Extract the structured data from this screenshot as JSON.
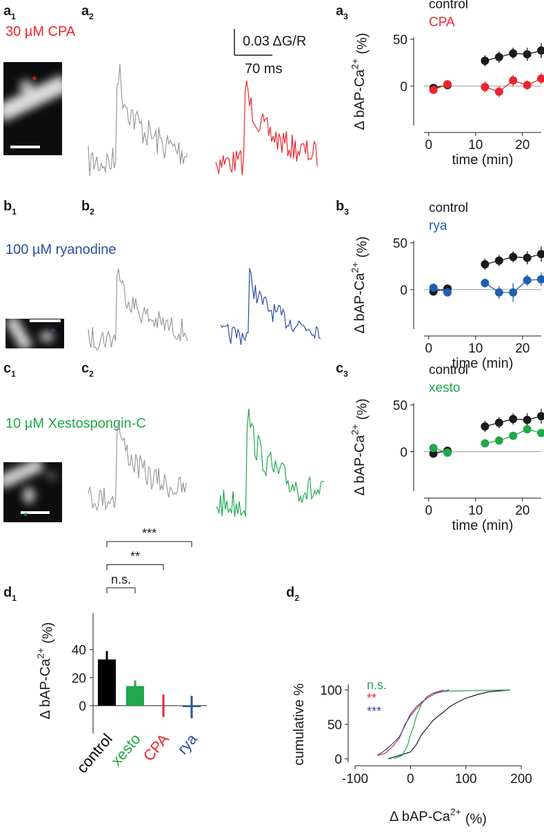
{
  "panel_labels": [
    {
      "letter": "a",
      "index": "1"
    },
    {
      "letter": "a",
      "index": "2"
    },
    {
      "letter": "a",
      "index": "3"
    },
    {
      "letter": "b",
      "index": "1"
    },
    {
      "letter": "b",
      "index": "2"
    },
    {
      "letter": "b",
      "index": "3"
    },
    {
      "letter": "c",
      "index": "1"
    },
    {
      "letter": "c",
      "index": "2"
    },
    {
      "letter": "c",
      "index": "3"
    },
    {
      "letter": "d",
      "index": "1"
    },
    {
      "letter": "d",
      "index": "2"
    }
  ],
  "conditions": [
    {
      "text": "30 µM CPA",
      "color": "#e8262b"
    },
    {
      "text": "100 µM ryanodine",
      "color": "#2b4ea0"
    },
    {
      "text": "10 µM Xestospongin-C",
      "color": "#20a84a"
    }
  ],
  "roi_marker": "*",
  "scale_bar": {
    "amplitude": "0.03 ΔG/R",
    "duration": "70 ms"
  },
  "chart_data": [
    {
      "type": "scatter",
      "x_label": "time (min)",
      "y_label": {
        "text": "Δ bAP-Ca",
        "sup": "2+",
        "unit": "(%)"
      },
      "xlim": [
        -1,
        24
      ],
      "xticks": [
        0,
        10,
        20
      ],
      "ylim": [
        -40,
        50
      ],
      "yticks": [
        0,
        50
      ],
      "zero_line": true,
      "x": [
        1,
        4,
        null,
        12,
        15,
        18,
        21,
        24
      ],
      "series": [
        {
          "name": "control",
          "color": "#1a1a1a",
          "values": [
            -2,
            1,
            null,
            27,
            31,
            35,
            34,
            38
          ],
          "errors": [
            2,
            2,
            null,
            6,
            6,
            6,
            7,
            8
          ]
        },
        {
          "name": "CPA",
          "color": "#e8262b",
          "values": [
            -4,
            2,
            null,
            -1,
            -6,
            6,
            1,
            8
          ],
          "errors": [
            2,
            2,
            null,
            6,
            6,
            6,
            5,
            6
          ]
        }
      ]
    },
    {
      "type": "scatter",
      "x_label": "time (min)",
      "y_label": {
        "text": "Δ bAP-Ca",
        "sup": "2+",
        "unit": "(%)"
      },
      "xlim": [
        -1,
        24
      ],
      "xticks": [
        0,
        10,
        20
      ],
      "ylim": [
        -40,
        50
      ],
      "yticks": [
        0,
        50
      ],
      "zero_line": true,
      "x": [
        1,
        4,
        null,
        12,
        15,
        18,
        21,
        24
      ],
      "series": [
        {
          "name": "control",
          "color": "#1a1a1a",
          "values": [
            -2,
            1,
            null,
            27,
            31,
            35,
            34,
            38
          ],
          "errors": [
            2,
            2,
            null,
            6,
            6,
            6,
            7,
            8
          ]
        },
        {
          "name": "rya",
          "color": "#1f5fb0",
          "values": [
            2,
            -3,
            null,
            7,
            -3,
            -3,
            10,
            11
          ],
          "errors": [
            2,
            2,
            null,
            5,
            7,
            10,
            6,
            7
          ]
        }
      ]
    },
    {
      "type": "scatter",
      "x_label": "time (min)",
      "y_label": {
        "text": "Δ bAP-Ca",
        "sup": "2+",
        "unit": "(%)"
      },
      "xlim": [
        -1,
        24
      ],
      "xticks": [
        0,
        10,
        20
      ],
      "ylim": [
        -40,
        50
      ],
      "yticks": [
        0,
        50
      ],
      "zero_line": true,
      "x": [
        1,
        4,
        null,
        12,
        15,
        18,
        21,
        24
      ],
      "series": [
        {
          "name": "control",
          "color": "#1a1a1a",
          "values": [
            -2,
            1,
            null,
            27,
            31,
            35,
            34,
            38
          ],
          "errors": [
            2,
            2,
            null,
            6,
            6,
            6,
            7,
            8
          ]
        },
        {
          "name": "xesto",
          "color": "#20a84a",
          "values": [
            4,
            -1,
            null,
            9,
            12,
            17,
            24,
            20
          ],
          "errors": [
            3,
            2,
            null,
            4,
            4,
            4,
            3,
            4
          ]
        }
      ]
    },
    {
      "type": "bar",
      "y_label": {
        "text": "Δ bAP-Ca",
        "sup": "2+",
        "unit": "(%)"
      },
      "categories": [
        "control",
        "xesto",
        "CPA",
        "rya"
      ],
      "category_colors": [
        "#000000",
        "#20a84a",
        "#e8262b",
        "#2b4ea0"
      ],
      "values": [
        33,
        14,
        0,
        -1
      ],
      "errors": [
        6,
        4,
        8,
        8
      ],
      "ylim": [
        -20,
        60
      ],
      "yticks": [
        0,
        20,
        40
      ],
      "annotations": [
        "n.s.",
        "**",
        "***"
      ]
    },
    {
      "type": "line",
      "x_label": {
        "text": "Δ bAP-Ca",
        "sup": "2+",
        "unit": "(%)"
      },
      "y_label": "cumulative %",
      "xlim": [
        -100,
        200
      ],
      "xticks": [
        -100,
        0,
        100,
        200
      ],
      "ylim": [
        0,
        100
      ],
      "yticks": [
        0,
        50,
        100
      ],
      "series": [
        {
          "color": "#1a1a1a",
          "x": [
            -40,
            -20,
            0,
            10,
            20,
            30,
            40,
            50,
            60,
            70,
            80,
            100,
            120,
            140,
            180
          ],
          "values": [
            0,
            5,
            10,
            20,
            35,
            45,
            55,
            62,
            68,
            75,
            80,
            88,
            93,
            97,
            100
          ]
        },
        {
          "name": "n.s.",
          "color": "#20a84a",
          "x": [
            -30,
            -15,
            -5,
            0,
            5,
            10,
            20,
            30,
            40,
            60,
            180
          ],
          "values": [
            0,
            5,
            20,
            35,
            45,
            60,
            80,
            90,
            95,
            98,
            100
          ]
        },
        {
          "name": "**",
          "color": "#e8262b",
          "x": [
            -60,
            -45,
            -30,
            -20,
            -10,
            0,
            10,
            20,
            30,
            40,
            60
          ],
          "values": [
            5,
            8,
            20,
            30,
            50,
            62,
            72,
            80,
            90,
            95,
            100
          ]
        },
        {
          "name": "***",
          "color": "#2b4ea0",
          "x": [
            -60,
            -50,
            -35,
            -20,
            -10,
            0,
            10,
            20,
            30,
            45,
            70
          ],
          "values": [
            5,
            10,
            20,
            32,
            48,
            65,
            75,
            82,
            88,
            95,
            100
          ]
        }
      ]
    }
  ]
}
